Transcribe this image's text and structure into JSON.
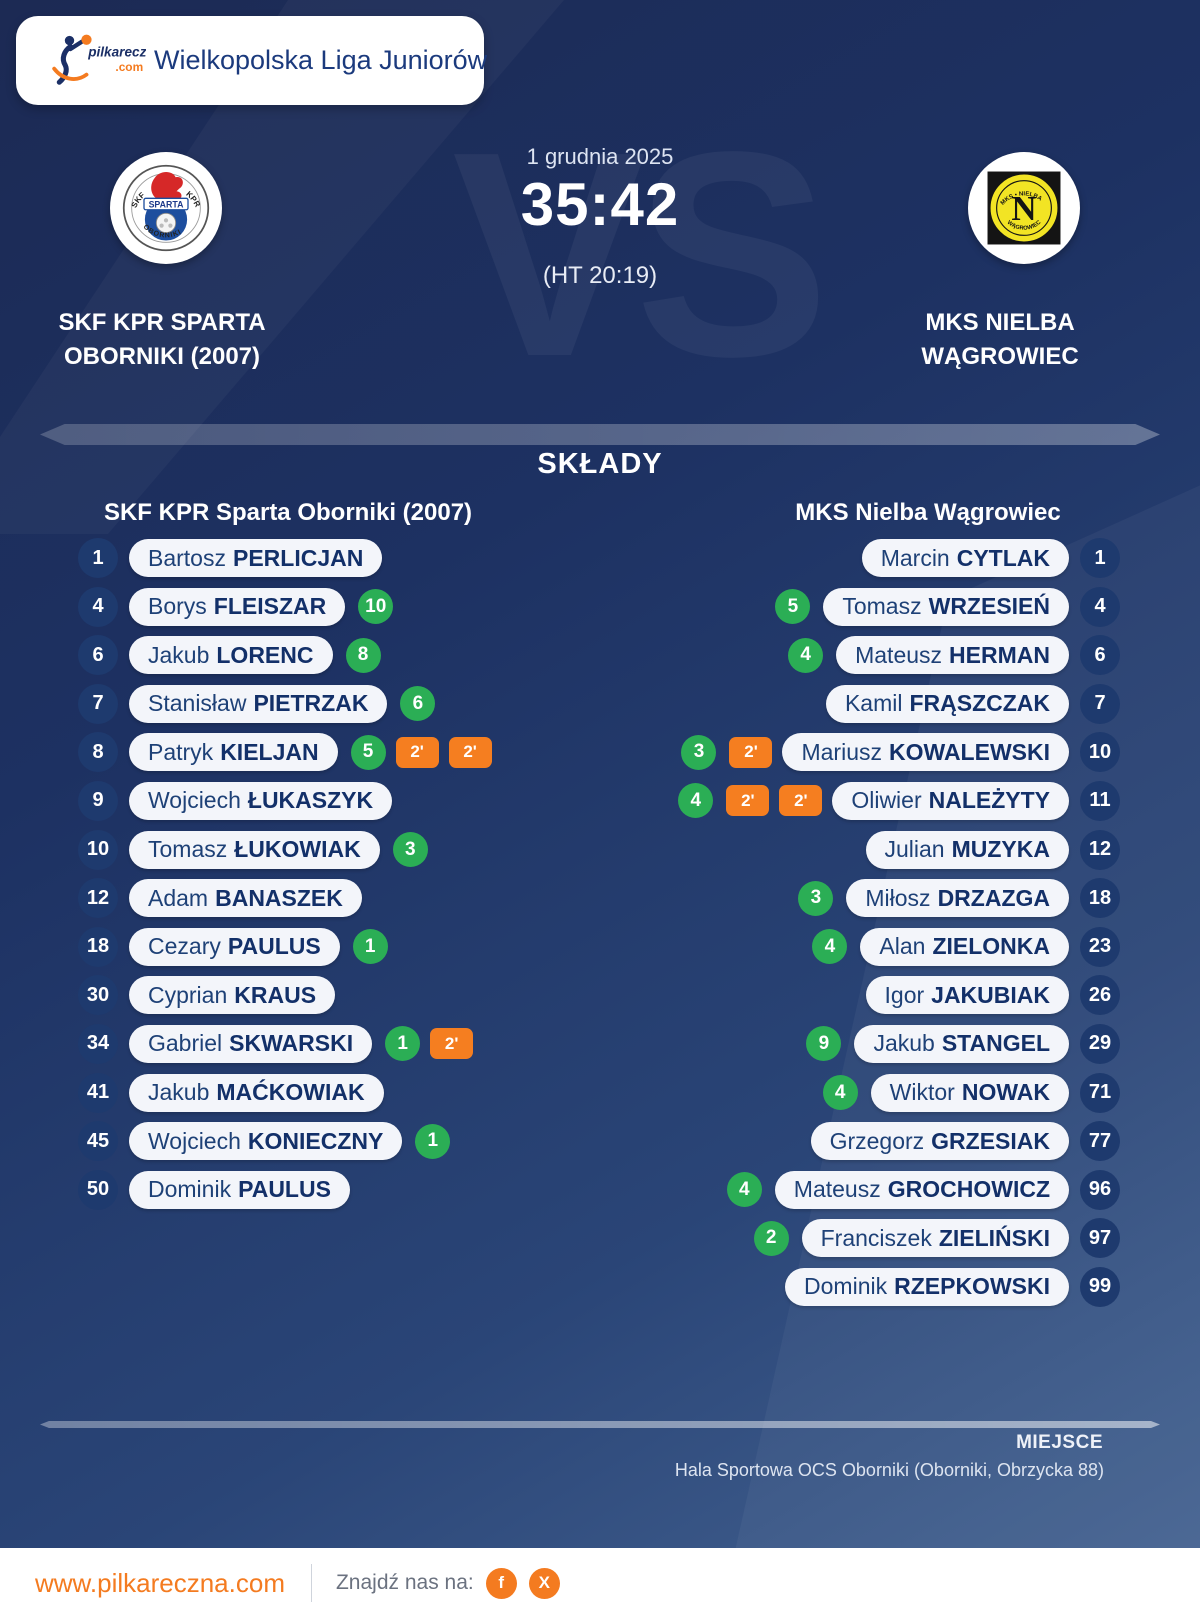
{
  "header": {
    "league_title": "Wielkopolska Liga Juniorów",
    "logo": {
      "name": "pilkareczna",
      "tld": ".com"
    }
  },
  "match": {
    "date": "1 grudnia 2025",
    "score": "35:42",
    "halftime": "(HT 20:19)",
    "vs_watermark": "VS",
    "home_team": {
      "name_line1": "SKF KPR SPARTA",
      "name_line2": "OBORNIKI (2007)",
      "badge": {
        "top_left": "SKF",
        "top_right": "KPR",
        "banner": "SPARTA",
        "bottom": "OBORNIKI"
      }
    },
    "away_team": {
      "name_line1": "MKS NIELBA",
      "name_line2": "WĄGROWIEC",
      "badge": {
        "top": "MKS • NIELBA",
        "center": "N",
        "bottom": "WĄGROWIEC"
      }
    }
  },
  "lineups": {
    "section_title": "SKŁADY",
    "home_header": "SKF KPR Sparta Oborniki (2007)",
    "away_header": "MKS Nielba Wągrowiec",
    "home_players": [
      {
        "number": "1",
        "first": "Bartosz",
        "last": "PERLICJAN",
        "goals": null,
        "suspensions": []
      },
      {
        "number": "4",
        "first": "Borys",
        "last": "FLEISZAR",
        "goals": 10,
        "suspensions": []
      },
      {
        "number": "6",
        "first": "Jakub",
        "last": "LORENC",
        "goals": 8,
        "suspensions": []
      },
      {
        "number": "7",
        "first": "Stanisław",
        "last": "PIETRZAK",
        "goals": 6,
        "suspensions": []
      },
      {
        "number": "8",
        "first": "Patryk",
        "last": "KIELJAN",
        "goals": 5,
        "suspensions": [
          "2'",
          "2'"
        ]
      },
      {
        "number": "9",
        "first": "Wojciech",
        "last": "ŁUKASZYK",
        "goals": null,
        "suspensions": []
      },
      {
        "number": "10",
        "first": "Tomasz",
        "last": "ŁUKOWIAK",
        "goals": 3,
        "suspensions": []
      },
      {
        "number": "12",
        "first": "Adam",
        "last": "BANASZEK",
        "goals": null,
        "suspensions": []
      },
      {
        "number": "18",
        "first": "Cezary",
        "last": "PAULUS",
        "goals": 1,
        "suspensions": []
      },
      {
        "number": "30",
        "first": "Cyprian",
        "last": "KRAUS",
        "goals": null,
        "suspensions": []
      },
      {
        "number": "34",
        "first": "Gabriel",
        "last": "SKWARSKI",
        "goals": 1,
        "suspensions": [
          "2'"
        ]
      },
      {
        "number": "41",
        "first": "Jakub",
        "last": "MAĆKOWIAK",
        "goals": null,
        "suspensions": []
      },
      {
        "number": "45",
        "first": "Wojciech",
        "last": "KONIECZNY",
        "goals": 1,
        "suspensions": []
      },
      {
        "number": "50",
        "first": "Dominik",
        "last": "PAULUS",
        "goals": null,
        "suspensions": []
      }
    ],
    "away_players": [
      {
        "number": "1",
        "first": "Marcin",
        "last": "CYTLAK",
        "goals": null,
        "suspensions": []
      },
      {
        "number": "4",
        "first": "Tomasz",
        "last": "WRZESIEŃ",
        "goals": 5,
        "suspensions": []
      },
      {
        "number": "6",
        "first": "Mateusz",
        "last": "HERMAN",
        "goals": 4,
        "suspensions": []
      },
      {
        "number": "7",
        "first": "Kamil",
        "last": "FRĄSZCZAK",
        "goals": null,
        "suspensions": []
      },
      {
        "number": "10",
        "first": "Mariusz",
        "last": "KOWALEWSKI",
        "goals": 3,
        "suspensions": [
          "2'"
        ]
      },
      {
        "number": "11",
        "first": "Oliwier",
        "last": "NALEŻYTY",
        "goals": 4,
        "suspensions": [
          "2'",
          "2'"
        ]
      },
      {
        "number": "12",
        "first": "Julian",
        "last": "MUZYKA",
        "goals": null,
        "suspensions": []
      },
      {
        "number": "18",
        "first": "Miłosz",
        "last": "DRZAZGA",
        "goals": 3,
        "suspensions": []
      },
      {
        "number": "23",
        "first": "Alan",
        "last": "ZIELONKA",
        "goals": 4,
        "suspensions": []
      },
      {
        "number": "26",
        "first": "Igor",
        "last": "JAKUBIAK",
        "goals": null,
        "suspensions": []
      },
      {
        "number": "29",
        "first": "Jakub",
        "last": "STANGEL",
        "goals": 9,
        "suspensions": []
      },
      {
        "number": "71",
        "first": "Wiktor",
        "last": "NOWAK",
        "goals": 4,
        "suspensions": []
      },
      {
        "number": "77",
        "first": "Grzegorz",
        "last": "GRZESIAK",
        "goals": null,
        "suspensions": []
      },
      {
        "number": "96",
        "first": "Mateusz",
        "last": "GROCHOWICZ",
        "goals": 4,
        "suspensions": []
      },
      {
        "number": "97",
        "first": "Franciszek",
        "last": "ZIELIŃSKI",
        "goals": 2,
        "suspensions": []
      },
      {
        "number": "99",
        "first": "Dominik",
        "last": "RZEPKOWSKI",
        "goals": null,
        "suspensions": []
      }
    ]
  },
  "venue": {
    "label": "MIEJSCE",
    "value": "Hala Sportowa OCS Oborniki (Oborniki, Obrzycka 88)"
  },
  "footer": {
    "website": "www.pilkareczna.com",
    "find_us_label": "Znajdź nas na:",
    "social": [
      {
        "icon": "facebook-icon",
        "glyph": "f"
      },
      {
        "icon": "x-twitter-icon",
        "glyph": "X"
      }
    ]
  },
  "colors": {
    "accent_orange": "#f47b20",
    "goal_green": "#2bae55",
    "suspension_orange": "#f57e20",
    "navy_text": "#133069",
    "page_navy": "#1d3162"
  }
}
